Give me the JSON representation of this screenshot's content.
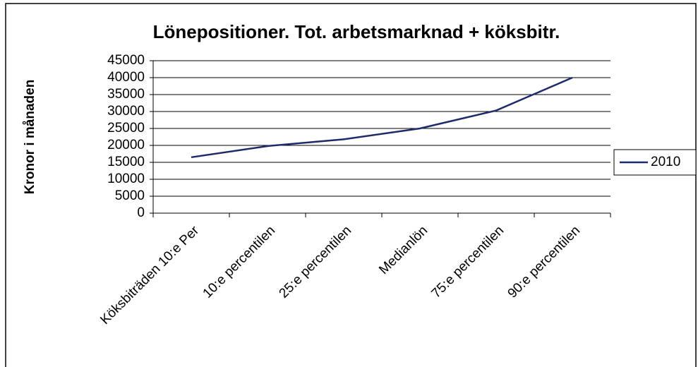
{
  "chart_data": {
    "type": "line",
    "title": "Lönepositioner. Tot. arbetsmarknad + köksbitr.",
    "y_label": "Kronor i månaden",
    "categories": [
      "Köksbiträden 10:e Per",
      "10:e percentilen",
      "25:e percentilen",
      "Medianlön",
      "75:e percentilen",
      "90:e percentilen"
    ],
    "series": [
      {
        "name": "2010",
        "color": "#1f2a6b",
        "values": [
          16500,
          19800,
          21800,
          25000,
          30300,
          40000
        ]
      }
    ],
    "ylim": [
      0,
      45000
    ],
    "yticks": [
      0,
      5000,
      10000,
      15000,
      20000,
      25000,
      30000,
      35000,
      40000,
      45000
    ],
    "grid": true,
    "legend": "right"
  }
}
